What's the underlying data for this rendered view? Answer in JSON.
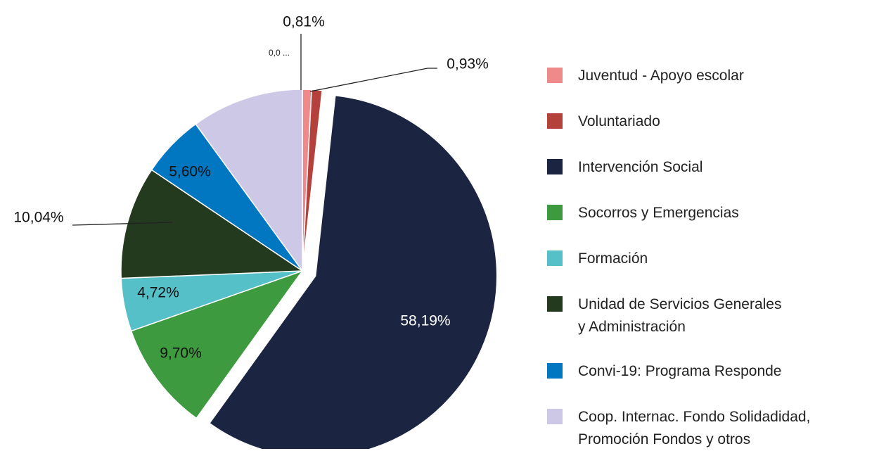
{
  "chart_data": {
    "type": "pie",
    "categories": [
      "Juventud - Apoyo escolar",
      "Voluntariado",
      "Intervención Social",
      "Socorros y Emergencias",
      "Formación",
      "Unidad de Servicios Generales\ny Administración",
      "Convi-19: Programa Responde",
      "Coop. Internac. Fondo Solidadidad,\nPromoción Fondos y otros"
    ],
    "values": [
      0.81,
      0.93,
      58.19,
      9.7,
      4.72,
      10.04,
      5.6,
      10.01
    ],
    "value_labels": [
      "0,81%",
      "0,93%",
      "58,19%",
      "9,70%",
      "4,72%",
      "10,04%",
      "5,60%",
      null
    ],
    "colors": [
      "#f08a8a",
      "#b5413c",
      "#1b2541",
      "#3e9a3e",
      "#56c0c8",
      "#243a1e",
      "#0077c0",
      "#cdc8e6"
    ],
    "annotation": "0,0 ...",
    "exploded": [
      2
    ],
    "legend": "right"
  }
}
